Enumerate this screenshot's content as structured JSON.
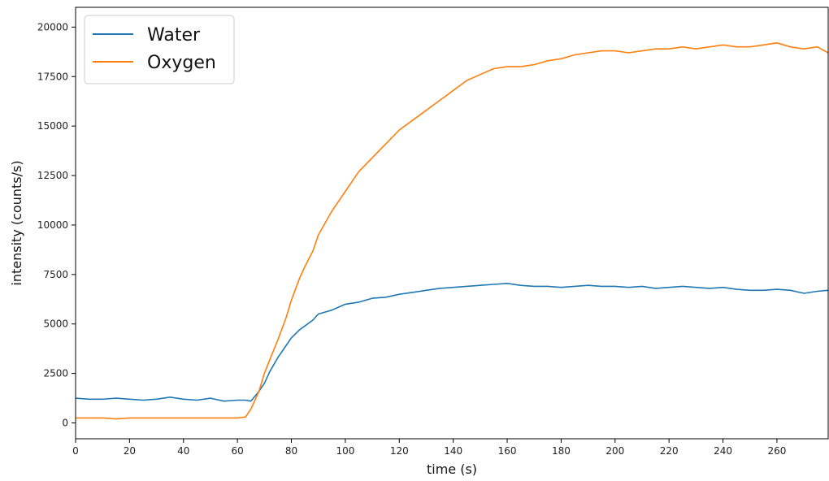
{
  "chart_data": {
    "type": "line",
    "title": "",
    "xlabel": "time (s)",
    "ylabel": "intensity (counts/s)",
    "xlim": [
      0,
      279
    ],
    "ylim": [
      -800,
      21000
    ],
    "xticks": [
      0,
      20,
      40,
      60,
      80,
      100,
      120,
      140,
      160,
      180,
      200,
      220,
      240,
      260
    ],
    "yticks": [
      0,
      2500,
      5000,
      7500,
      10000,
      12500,
      15000,
      17500,
      20000
    ],
    "grid": false,
    "legend_position": "top-left",
    "series": [
      {
        "name": "Water",
        "color": "#1f77b4",
        "x": [
          0,
          5,
          10,
          15,
          20,
          25,
          30,
          35,
          40,
          45,
          50,
          55,
          60,
          63,
          65,
          68,
          70,
          72,
          75,
          78,
          80,
          83,
          85,
          88,
          90,
          95,
          100,
          105,
          110,
          115,
          120,
          125,
          130,
          135,
          140,
          145,
          150,
          155,
          160,
          165,
          170,
          175,
          180,
          185,
          190,
          195,
          200,
          205,
          210,
          215,
          220,
          225,
          230,
          235,
          240,
          245,
          250,
          255,
          260,
          265,
          270,
          275,
          279
        ],
        "y": [
          1250,
          1200,
          1200,
          1250,
          1200,
          1150,
          1200,
          1300,
          1200,
          1150,
          1250,
          1100,
          1150,
          1150,
          1100,
          1600,
          2000,
          2600,
          3300,
          3900,
          4300,
          4700,
          4900,
          5200,
          5500,
          5700,
          6000,
          6100,
          6300,
          6350,
          6500,
          6600,
          6700,
          6800,
          6850,
          6900,
          6950,
          7000,
          7050,
          6950,
          6900,
          6900,
          6850,
          6900,
          6950,
          6900,
          6900,
          6850,
          6900,
          6800,
          6850,
          6900,
          6850,
          6800,
          6850,
          6750,
          6700,
          6700,
          6750,
          6700,
          6550,
          6650,
          6700
        ]
      },
      {
        "name": "Oxygen",
        "color": "#ff7f0e",
        "x": [
          0,
          5,
          10,
          15,
          20,
          25,
          30,
          35,
          40,
          45,
          50,
          55,
          60,
          63,
          65,
          68,
          70,
          72,
          75,
          78,
          80,
          83,
          85,
          88,
          90,
          95,
          100,
          105,
          110,
          115,
          120,
          125,
          130,
          135,
          140,
          145,
          150,
          155,
          160,
          165,
          170,
          175,
          180,
          185,
          190,
          195,
          200,
          205,
          210,
          215,
          220,
          225,
          230,
          235,
          240,
          245,
          250,
          255,
          260,
          265,
          270,
          275,
          279
        ],
        "y": [
          250,
          250,
          250,
          200,
          250,
          250,
          250,
          250,
          250,
          250,
          250,
          250,
          250,
          300,
          700,
          1600,
          2500,
          3200,
          4200,
          5300,
          6200,
          7300,
          7900,
          8700,
          9500,
          10700,
          11700,
          12700,
          13400,
          14100,
          14800,
          15300,
          15800,
          16300,
          16800,
          17300,
          17600,
          17900,
          18000,
          18000,
          18100,
          18300,
          18400,
          18600,
          18700,
          18800,
          18800,
          18700,
          18800,
          18900,
          18900,
          19000,
          18900,
          19000,
          19100,
          19000,
          19000,
          19100,
          19200,
          19000,
          18900,
          19000,
          18700
        ]
      }
    ]
  }
}
